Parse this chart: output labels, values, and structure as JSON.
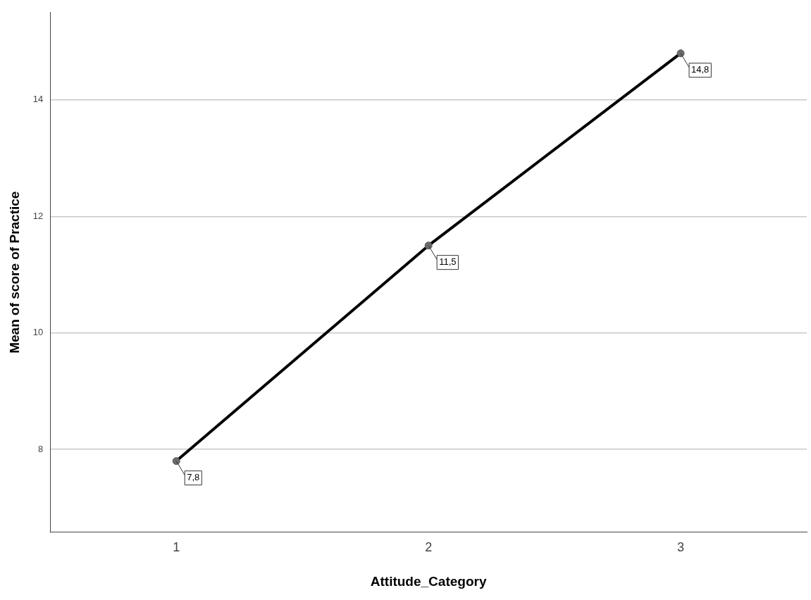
{
  "chart_data": {
    "type": "line",
    "xlabel": "Attitude_Category",
    "ylabel": "Mean of score of Practice",
    "categories": [
      "1",
      "2",
      "3"
    ],
    "series": [
      {
        "color": "#000000",
        "values": [
          7.8,
          11.5,
          14.8
        ],
        "value_labels": [
          "7,8",
          "11,5",
          "14,8"
        ]
      }
    ],
    "ylim": [
      6.58,
      15.5
    ],
    "yticks": [
      8,
      10,
      12,
      14
    ],
    "grid": "y",
    "legend": false,
    "marker": "circle",
    "line_style": "solid"
  }
}
